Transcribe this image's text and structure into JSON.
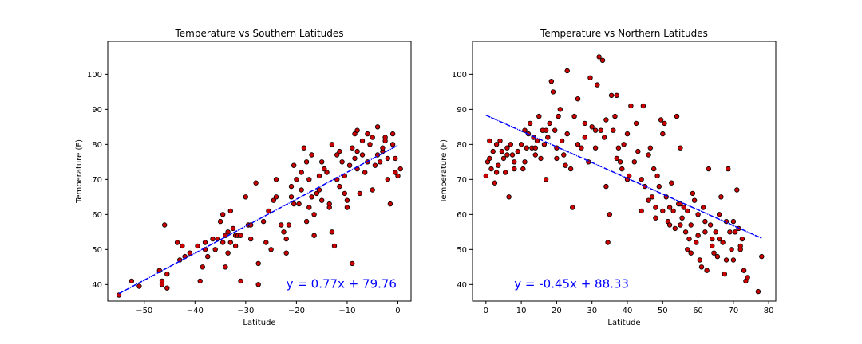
{
  "chart_data": [
    {
      "type": "scatter",
      "title": "Temperature vs Southern Latitudes",
      "xlabel": "Latitude",
      "ylabel": "Temperature (F)",
      "xlim": [
        -57.2,
        2.6
      ],
      "ylim": [
        35.3,
        109.4
      ],
      "xticks": [
        -50,
        -40,
        -30,
        -20,
        -10,
        0
      ],
      "yticks": [
        40,
        50,
        60,
        70,
        80,
        90,
        100
      ],
      "xtick_labels": [
        "−50",
        "−40",
        "−30",
        "−20",
        "−10",
        "0"
      ],
      "ytick_labels": [
        "40",
        "50",
        "60",
        "70",
        "80",
        "90",
        "100"
      ],
      "marker_color": "#cc0000",
      "marker_edge": "#000000",
      "line_color": "#0000ff",
      "regression": {
        "slope": 0.77,
        "intercept": 79.76,
        "x_range": [
          -55,
          0
        ]
      },
      "annotation": {
        "text": "y = 0.77x + 79.76",
        "x": -22,
        "y": 39,
        "color": "#0000ff"
      },
      "points": [
        [
          -55,
          37
        ],
        [
          -52.5,
          41
        ],
        [
          -51,
          39.5
        ],
        [
          -47,
          44
        ],
        [
          -46.5,
          40
        ],
        [
          -46.5,
          41
        ],
        [
          -46,
          57
        ],
        [
          -45.5,
          39
        ],
        [
          -45.5,
          43
        ],
        [
          -43.5,
          52
        ],
        [
          -43,
          47
        ],
        [
          -42.5,
          51
        ],
        [
          -42,
          48
        ],
        [
          -39,
          41
        ],
        [
          -38.5,
          45
        ],
        [
          -38,
          50
        ],
        [
          -38,
          52
        ],
        [
          -37.5,
          48
        ],
        [
          -36,
          50
        ],
        [
          -35.5,
          53
        ],
        [
          -35,
          58
        ],
        [
          -34.5,
          52
        ],
        [
          -34.5,
          60
        ],
        [
          -34,
          54
        ],
        [
          -34,
          45
        ],
        [
          -33.5,
          49
        ],
        [
          -33.5,
          55
        ],
        [
          -33,
          52
        ],
        [
          -33,
          61
        ],
        [
          -32.5,
          56
        ],
        [
          -32,
          51
        ],
        [
          -32,
          54
        ],
        [
          -31.5,
          54
        ],
        [
          -31,
          41
        ],
        [
          -31,
          54
        ],
        [
          -30,
          65
        ],
        [
          -29.5,
          57
        ],
        [
          -29,
          53
        ],
        [
          -28,
          69
        ],
        [
          -27.5,
          46
        ],
        [
          -27.5,
          40
        ],
        [
          -26.5,
          58
        ],
        [
          -26,
          52
        ],
        [
          -25.5,
          61
        ],
        [
          -25,
          50
        ],
        [
          -24.5,
          64
        ],
        [
          -24,
          65
        ],
        [
          -23,
          57
        ],
        [
          -22.5,
          55
        ],
        [
          -22,
          53
        ],
        [
          -22,
          49
        ],
        [
          -21.5,
          57
        ],
        [
          -21,
          65
        ],
        [
          -20.5,
          74
        ],
        [
          -20,
          70
        ],
        [
          -19.5,
          63
        ],
        [
          -19,
          67
        ],
        [
          -18.5,
          79
        ],
        [
          -18,
          75
        ],
        [
          -18,
          58
        ],
        [
          -17.5,
          62
        ],
        [
          -17,
          77
        ],
        [
          -17,
          65
        ],
        [
          -16.5,
          60
        ],
        [
          -16.5,
          54
        ],
        [
          -16,
          66
        ],
        [
          -15.5,
          67
        ],
        [
          -15,
          64
        ],
        [
          -15,
          75
        ],
        [
          -14.5,
          73
        ],
        [
          -14,
          72
        ],
        [
          -13.5,
          63
        ],
        [
          -13,
          80
        ],
        [
          -13,
          55
        ],
        [
          -12.5,
          51
        ],
        [
          -12,
          77
        ],
        [
          -12,
          70
        ],
        [
          -11.5,
          68
        ],
        [
          -11,
          75
        ],
        [
          -10.5,
          66
        ],
        [
          -10,
          64
        ],
        [
          -10,
          62
        ],
        [
          -9.5,
          74
        ],
        [
          -9,
          79
        ],
        [
          -9,
          46
        ],
        [
          -8.5,
          83
        ],
        [
          -8.5,
          76
        ],
        [
          -8,
          84
        ],
        [
          -8,
          73
        ],
        [
          -7.5,
          66
        ],
        [
          -7,
          81
        ],
        [
          -7,
          77
        ],
        [
          -6.5,
          72
        ],
        [
          -6,
          83
        ],
        [
          -5.5,
          80
        ],
        [
          -5,
          82
        ],
        [
          -5,
          67
        ],
        [
          -4.5,
          74
        ],
        [
          -4,
          85
        ],
        [
          -3.5,
          75
        ],
        [
          -3,
          78
        ],
        [
          -2.5,
          82
        ],
        [
          -2,
          70
        ],
        [
          -2,
          76
        ],
        [
          -1.5,
          63
        ],
        [
          -1,
          83
        ],
        [
          -1,
          80
        ],
        [
          -0.5,
          76
        ],
        [
          0,
          71
        ],
        [
          -41,
          49
        ],
        [
          -39.5,
          51
        ],
        [
          -36.5,
          53
        ],
        [
          -29,
          57
        ],
        [
          -24,
          70
        ],
        [
          -21,
          68
        ],
        [
          -19,
          72
        ],
        [
          -15.5,
          71
        ],
        [
          -11.5,
          78
        ],
        [
          -10.5,
          71
        ],
        [
          -8,
          78
        ],
        [
          -6,
          75
        ],
        [
          -4,
          77
        ],
        [
          -3,
          79
        ],
        [
          0.5,
          73
        ],
        [
          -0.5,
          72
        ],
        [
          -2.5,
          81
        ],
        [
          -13.5,
          62
        ],
        [
          -17.5,
          70
        ],
        [
          -20.5,
          63
        ]
      ]
    },
    {
      "type": "scatter",
      "title": "Temperature vs Northern Latitudes",
      "xlabel": "Latitude",
      "ylabel": "Temperature (F)",
      "xlim": [
        -3.8,
        82.0
      ],
      "ylim": [
        35.3,
        109.4
      ],
      "xticks": [
        0,
        10,
        20,
        30,
        40,
        50,
        60,
        70,
        80
      ],
      "yticks": [
        40,
        50,
        60,
        70,
        80,
        90,
        100
      ],
      "xtick_labels": [
        "0",
        "10",
        "20",
        "30",
        "40",
        "50",
        "60",
        "70",
        "80"
      ],
      "ytick_labels": [
        "40",
        "50",
        "60",
        "70",
        "80",
        "90",
        "100"
      ],
      "marker_color": "#cc0000",
      "marker_edge": "#000000",
      "line_color": "#0000ff",
      "regression": {
        "slope": -0.45,
        "intercept": 88.33,
        "x_range": [
          0,
          78
        ]
      },
      "annotation": {
        "text": "y = -0.45x + 88.33",
        "x": 8,
        "y": 39,
        "color": "#0000ff"
      },
      "points": [
        [
          0,
          71
        ],
        [
          0.5,
          75
        ],
        [
          1,
          81
        ],
        [
          1.5,
          73
        ],
        [
          2,
          78
        ],
        [
          2.5,
          69
        ],
        [
          3,
          80
        ],
        [
          3.5,
          74
        ],
        [
          4,
          81
        ],
        [
          4.5,
          78
        ],
        [
          5,
          76
        ],
        [
          5.5,
          72
        ],
        [
          6,
          79
        ],
        [
          6.5,
          65
        ],
        [
          7,
          80
        ],
        [
          7.5,
          77
        ],
        [
          8,
          75
        ],
        [
          9,
          78
        ],
        [
          10,
          80
        ],
        [
          10.5,
          73
        ],
        [
          11,
          84
        ],
        [
          11.5,
          79
        ],
        [
          12,
          83
        ],
        [
          12.5,
          86
        ],
        [
          13,
          79
        ],
        [
          13.5,
          82
        ],
        [
          14,
          77
        ],
        [
          14.5,
          81
        ],
        [
          15,
          88
        ],
        [
          15.5,
          76
        ],
        [
          16,
          84
        ],
        [
          16.5,
          80
        ],
        [
          17,
          70
        ],
        [
          17.5,
          82
        ],
        [
          18,
          86
        ],
        [
          18.5,
          98
        ],
        [
          19,
          95
        ],
        [
          19.5,
          84
        ],
        [
          20,
          79
        ],
        [
          20.5,
          88
        ],
        [
          21,
          90
        ],
        [
          21.5,
          81
        ],
        [
          22,
          77
        ],
        [
          22.5,
          74
        ],
        [
          23,
          101
        ],
        [
          24,
          73
        ],
        [
          24.5,
          62
        ],
        [
          25,
          88
        ],
        [
          26,
          93
        ],
        [
          27,
          79
        ],
        [
          28,
          82
        ],
        [
          29,
          75
        ],
        [
          29.5,
          99
        ],
        [
          30,
          85
        ],
        [
          31,
          79
        ],
        [
          31.5,
          97
        ],
        [
          32,
          105
        ],
        [
          32.5,
          84
        ],
        [
          33,
          104
        ],
        [
          33.5,
          82
        ],
        [
          34,
          87
        ],
        [
          34.5,
          52
        ],
        [
          35,
          60
        ],
        [
          35.5,
          94
        ],
        [
          36,
          84
        ],
        [
          36.5,
          88
        ],
        [
          37,
          94
        ],
        [
          37.5,
          79
        ],
        [
          38,
          75
        ],
        [
          38.5,
          73
        ],
        [
          39,
          80
        ],
        [
          40,
          83
        ],
        [
          40.5,
          71
        ],
        [
          41,
          91
        ],
        [
          42,
          75
        ],
        [
          42.5,
          86
        ],
        [
          43,
          78
        ],
        [
          44,
          70
        ],
        [
          44.5,
          91
        ],
        [
          45,
          68
        ],
        [
          46,
          77
        ],
        [
          46.5,
          79
        ],
        [
          47,
          65
        ],
        [
          47.5,
          73
        ],
        [
          48,
          62
        ],
        [
          48.5,
          71
        ],
        [
          49,
          68
        ],
        [
          49.5,
          87
        ],
        [
          50,
          83
        ],
        [
          50.5,
          86
        ],
        [
          51,
          65
        ],
        [
          51.5,
          58
        ],
        [
          52,
          62
        ],
        [
          52.5,
          69
        ],
        [
          53,
          61
        ],
        [
          53.5,
          56
        ],
        [
          54,
          88
        ],
        [
          54.5,
          63
        ],
        [
          55,
          79
        ],
        [
          55.5,
          59
        ],
        [
          56,
          62
        ],
        [
          56.5,
          55
        ],
        [
          57,
          61
        ],
        [
          57.5,
          53
        ],
        [
          58,
          57
        ],
        [
          58.5,
          66
        ],
        [
          59,
          64
        ],
        [
          59.5,
          52
        ],
        [
          60,
          60
        ],
        [
          60.5,
          47
        ],
        [
          61,
          45
        ],
        [
          61.5,
          62
        ],
        [
          62,
          58
        ],
        [
          62.5,
          44
        ],
        [
          63,
          73
        ],
        [
          63.5,
          57
        ],
        [
          64,
          53
        ],
        [
          64.5,
          49
        ],
        [
          65,
          55
        ],
        [
          65.5,
          48
        ],
        [
          66,
          60
        ],
        [
          66.5,
          65
        ],
        [
          67,
          52
        ],
        [
          67.5,
          43
        ],
        [
          68,
          58
        ],
        [
          68.5,
          73
        ],
        [
          69,
          55
        ],
        [
          69.5,
          50
        ],
        [
          70,
          47
        ],
        [
          70.5,
          55
        ],
        [
          71,
          67
        ],
        [
          71.5,
          56
        ],
        [
          72,
          50
        ],
        [
          72.5,
          53
        ],
        [
          73,
          44
        ],
        [
          73.5,
          41
        ],
        [
          74,
          42
        ],
        [
          77,
          38
        ],
        [
          78,
          48
        ],
        [
          64,
          51
        ],
        [
          60,
          54
        ],
        [
          57,
          50
        ],
        [
          55,
          57
        ],
        [
          52,
          57
        ],
        [
          48,
          59
        ],
        [
          46,
          64
        ],
        [
          44,
          61
        ],
        [
          40,
          70
        ],
        [
          37,
          76
        ],
        [
          34,
          68
        ],
        [
          31,
          84
        ],
        [
          28,
          86
        ],
        [
          26,
          80
        ],
        [
          23,
          83
        ],
        [
          20,
          76
        ],
        [
          17,
          84
        ],
        [
          14,
          79
        ],
        [
          11,
          75
        ],
        [
          8,
          73
        ],
        [
          6,
          77
        ],
        [
          3,
          72
        ],
        [
          1,
          76
        ],
        [
          62,
          55
        ],
        [
          66,
          53
        ],
        [
          68,
          47
        ],
        [
          70,
          58
        ],
        [
          72,
          51
        ],
        [
          58,
          49
        ],
        [
          55,
          63
        ],
        [
          50,
          61
        ]
      ]
    }
  ]
}
